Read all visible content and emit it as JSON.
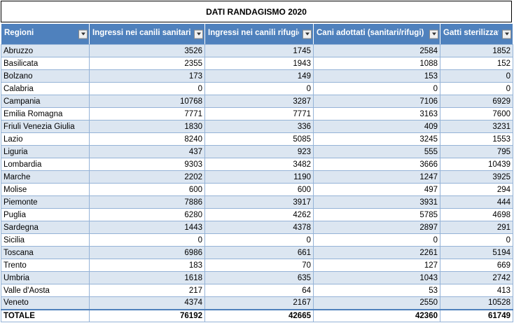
{
  "title": "DATI RANDAGISMO 2020",
  "headers": [
    "Regioni",
    "Ingressi nei canili sanitari",
    "Ingressi nei canili rifugio",
    "Cani adottati (sanitari/rifugi)",
    "Gatti sterilizzati"
  ],
  "rows": [
    [
      "Abruzzo",
      "3526",
      "1745",
      "2584",
      "1852"
    ],
    [
      "Basilicata",
      "2355",
      "1943",
      "1088",
      "152"
    ],
    [
      "Bolzano",
      "173",
      "149",
      "153",
      "0"
    ],
    [
      "Calabria",
      "0",
      "0",
      "0",
      "0"
    ],
    [
      "Campania",
      "10768",
      "3287",
      "7106",
      "6929"
    ],
    [
      "Emilia Romagna",
      "7771",
      "7771",
      "3163",
      "7600"
    ],
    [
      "Friuli Venezia Giulia",
      "1830",
      "336",
      "409",
      "3231"
    ],
    [
      "Lazio",
      "8240",
      "5085",
      "3245",
      "1553"
    ],
    [
      "Liguria",
      "437",
      "923",
      "555",
      "795"
    ],
    [
      "Lombardia",
      "9303",
      "3482",
      "3666",
      "10439"
    ],
    [
      "Marche",
      "2202",
      "1190",
      "1247",
      "3925"
    ],
    [
      "Molise",
      "600",
      "600",
      "497",
      "294"
    ],
    [
      "Piemonte",
      "7886",
      "3917",
      "3931",
      "444"
    ],
    [
      "Puglia",
      "6280",
      "4262",
      "5785",
      "4698"
    ],
    [
      "Sardegna",
      "1443",
      "4378",
      "2897",
      "291"
    ],
    [
      "Sicilia",
      "0",
      "0",
      "0",
      "0"
    ],
    [
      "Toscana",
      "6986",
      "661",
      "2261",
      "5194"
    ],
    [
      "Trento",
      "183",
      "70",
      "127",
      "669"
    ],
    [
      "Umbria",
      "1618",
      "635",
      "1043",
      "2742"
    ],
    [
      "Valle d'Aosta",
      "217",
      "64",
      "53",
      "413"
    ],
    [
      "Veneto",
      "4374",
      "2167",
      "2550",
      "10528"
    ]
  ],
  "total": [
    "TOTALE",
    "76192",
    "42665",
    "42360",
    "61749"
  ],
  "colors": {
    "header_bg": "#4f81bd",
    "band": "#dce6f1",
    "border": "#95b3d7"
  }
}
